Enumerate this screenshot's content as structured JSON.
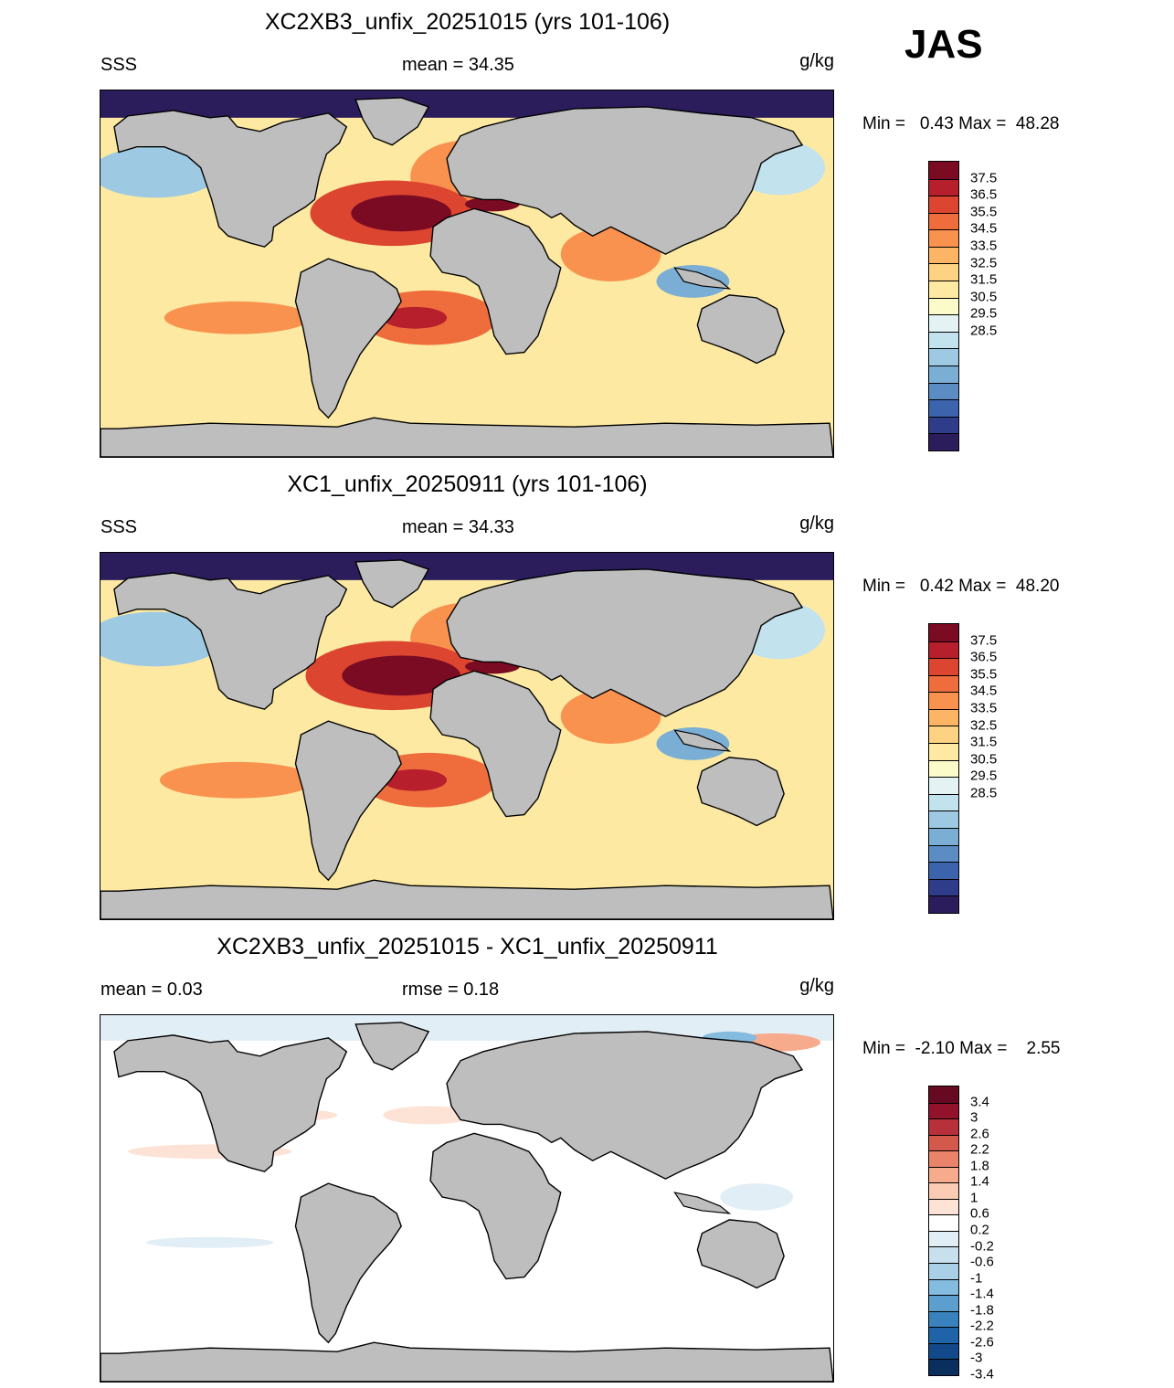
{
  "season": "JAS",
  "units": "g/kg",
  "panels": [
    {
      "title": "XC2XB3_unfix_20251015 (yrs 101-106)",
      "left_label": "SSS",
      "center_label": "mean =  34.35",
      "minmax": "Min =   0.43 Max =  48.28",
      "colorbar": {
        "colors": [
          "#2b1d5c",
          "#2f3c8a",
          "#3c64ad",
          "#5b8cc4",
          "#7aaed4",
          "#9dcae2",
          "#c2e2ee",
          "#e4f2f3",
          "#fbfbc9",
          "#fde9a1",
          "#fdd282",
          "#fcb465",
          "#f9924f",
          "#ef6d3c",
          "#dc4530",
          "#b71f2c",
          "#7a0b23"
        ],
        "labels": [
          "37.5",
          "36.5",
          "35.5",
          "34.5",
          "33.5",
          "32.5",
          "31.5",
          "30.5",
          "29.5",
          "28.5"
        ]
      }
    },
    {
      "title": "XC1_unfix_20250911 (yrs 101-106)",
      "left_label": "SSS",
      "center_label": "mean =  34.33",
      "minmax": "Min =   0.42 Max =  48.20",
      "colorbar": {
        "colors": [
          "#2b1d5c",
          "#2f3c8a",
          "#3c64ad",
          "#5b8cc4",
          "#7aaed4",
          "#9dcae2",
          "#c2e2ee",
          "#e4f2f3",
          "#fbfbc9",
          "#fde9a1",
          "#fdd282",
          "#fcb465",
          "#f9924f",
          "#ef6d3c",
          "#dc4530",
          "#b71f2c",
          "#7a0b23"
        ],
        "labels": [
          "37.5",
          "36.5",
          "35.5",
          "34.5",
          "33.5",
          "32.5",
          "31.5",
          "30.5",
          "29.5",
          "28.5"
        ]
      }
    },
    {
      "title": "XC2XB3_unfix_20251015 - XC1_unfix_20250911",
      "left_label": "mean =   0.03",
      "center_label": "rmse =   0.18",
      "minmax": "Min =  -2.10 Max =    2.55",
      "colorbar": {
        "colors": [
          "#0a2e5e",
          "#12498a",
          "#1f63a8",
          "#3a82bd",
          "#5c9fcf",
          "#83bcdf",
          "#a9d0e6",
          "#c8e0ee",
          "#e2eef5",
          "#ffffff",
          "#fde3d6",
          "#fbcbb4",
          "#f6ab8d",
          "#e9846b",
          "#d35a4b",
          "#b8303a",
          "#92122c",
          "#650a21"
        ],
        "labels": [
          "3.4",
          "3",
          "2.6",
          "2.2",
          "1.8",
          "1.4",
          "1",
          "0.6",
          "0.2",
          "-0.2",
          "-0.6",
          "-1",
          "-1.4",
          "-1.8",
          "-2.2",
          "-2.6",
          "-3",
          "-3.4"
        ]
      }
    }
  ]
}
